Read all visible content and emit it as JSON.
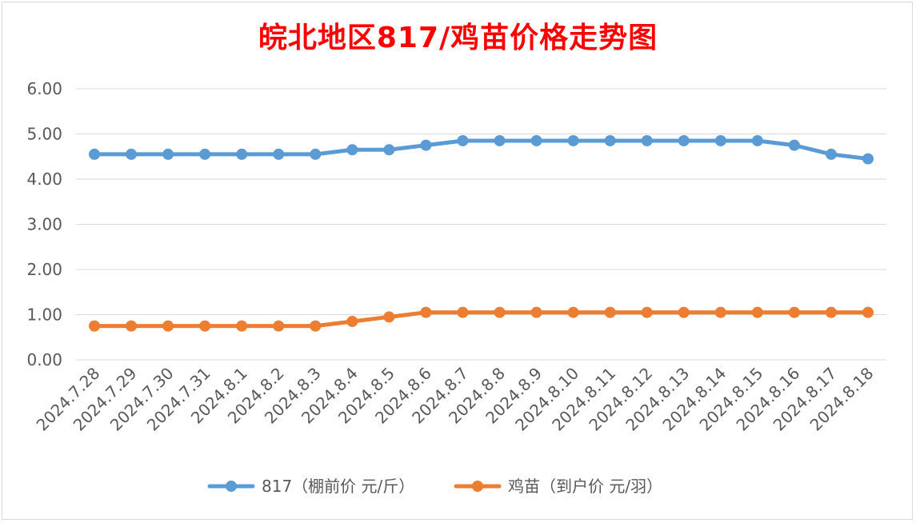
{
  "chart_data": {
    "type": "line",
    "title": "皖北地区817/鸡苗价格走势图",
    "title_color": "#ff0000",
    "categories": [
      "2024.7.28",
      "2024.7.29",
      "2024.7.30",
      "2024.7.31",
      "2024.8.1",
      "2024.8.2",
      "2024.8.3",
      "2024.8.4",
      "2024.8.5",
      "2024.8.6",
      "2024.8.7",
      "2024.8.8",
      "2024.8.9",
      "2024.8.10",
      "2024.8.11",
      "2024.8.12",
      "2024.8.13",
      "2024.8.14",
      "2024.8.15",
      "2024.8.16",
      "2024.8.17",
      "2024.8.18"
    ],
    "series": [
      {
        "name": "817（棚前价 元/斤）",
        "color": "#5b9bd5",
        "values": [
          4.55,
          4.55,
          4.55,
          4.55,
          4.55,
          4.55,
          4.55,
          4.65,
          4.65,
          4.75,
          4.85,
          4.85,
          4.85,
          4.85,
          4.85,
          4.85,
          4.85,
          4.85,
          4.85,
          4.75,
          4.55,
          4.45
        ]
      },
      {
        "name": "鸡苗（到户价 元/羽）",
        "color": "#ed7d31",
        "values": [
          0.75,
          0.75,
          0.75,
          0.75,
          0.75,
          0.75,
          0.75,
          0.85,
          0.95,
          1.05,
          1.05,
          1.05,
          1.05,
          1.05,
          1.05,
          1.05,
          1.05,
          1.05,
          1.05,
          1.05,
          1.05,
          1.05
        ]
      }
    ],
    "ylim": [
      0,
      6
    ],
    "yticks": [
      "0.00",
      "1.00",
      "2.00",
      "3.00",
      "4.00",
      "5.00",
      "6.00"
    ],
    "grid": true,
    "legend_position": "bottom",
    "xlabel": "",
    "ylabel": ""
  }
}
